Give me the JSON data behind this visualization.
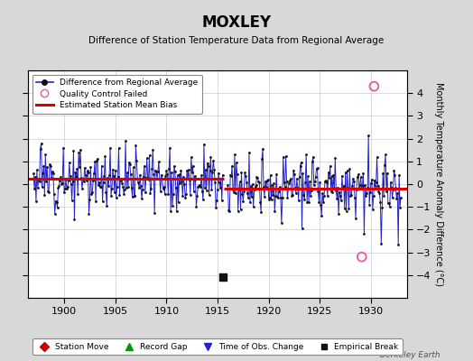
{
  "title": "MOXLEY",
  "subtitle": "Difference of Station Temperature Data from Regional Average",
  "ylabel": "Monthly Temperature Anomaly Difference (°C)",
  "xlim": [
    1896.5,
    1933.5
  ],
  "ylim": [
    -5,
    5
  ],
  "yticks": [
    -4,
    -3,
    -2,
    -1,
    0,
    1,
    2,
    3,
    4
  ],
  "xticks": [
    1900,
    1905,
    1910,
    1915,
    1920,
    1925,
    1930
  ],
  "background_color": "#d8d8d8",
  "plot_bg_color": "#ffffff",
  "grid_color": "#cccccc",
  "line_color": "#2222cc",
  "dot_color": "#111111",
  "bias_color": "#dd0000",
  "bias_seg1": [
    1896.5,
    1915.58,
    0.22
  ],
  "bias_seg2": [
    1915.58,
    1933.5,
    -0.18
  ],
  "qc_failed_1": [
    1930.3,
    4.3
  ],
  "qc_failed_2": [
    1929.1,
    -3.2
  ],
  "empirical_break": [
    1915.5,
    -4.1
  ],
  "gap_start": 1915.58,
  "gap_end": 1916.0,
  "seed": 12,
  "watermark": "Berkeley Earth",
  "figsize": [
    5.24,
    4.0
  ],
  "dpi": 100
}
